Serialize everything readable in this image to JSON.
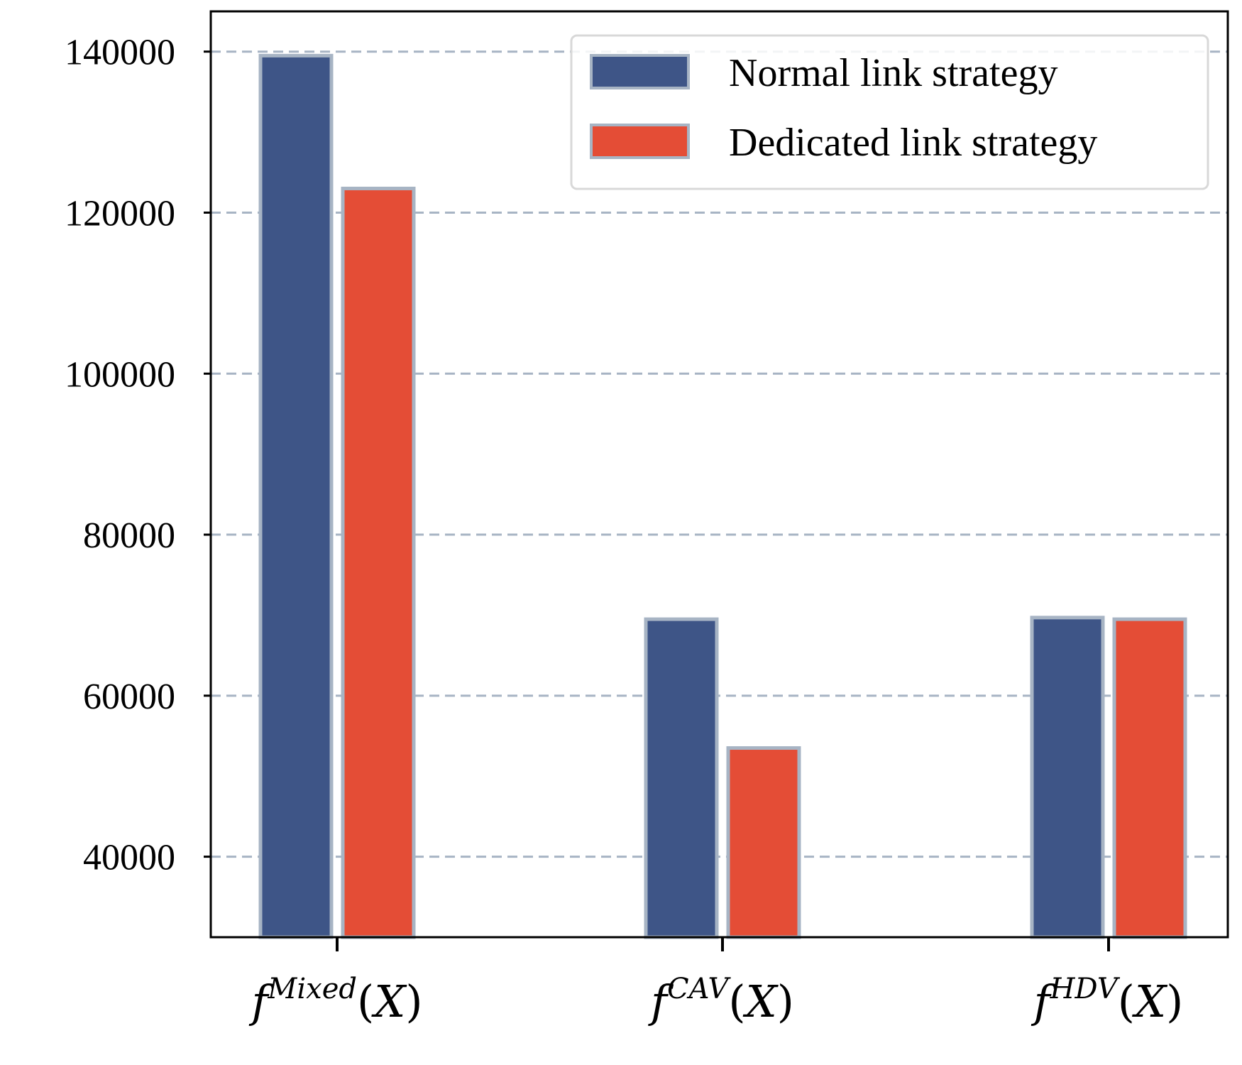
{
  "chart_data": {
    "type": "bar",
    "categories": [
      {
        "base": "f",
        "sup": "Mixed",
        "arg": "X"
      },
      {
        "base": "f",
        "sup": "CAV",
        "arg": "X"
      },
      {
        "base": "f",
        "sup": "HDV",
        "arg": "X"
      }
    ],
    "series": [
      {
        "name": "Normal link strategy",
        "color": "#3e5587",
        "values": [
          139500,
          69500,
          69700
        ]
      },
      {
        "name": "Dedicated link strategy",
        "color": "#e44d36",
        "values": [
          123000,
          53500,
          69500
        ]
      }
    ],
    "bar_edge_color": "#a7b4c4",
    "ylim": [
      30000,
      145000
    ],
    "yticks": [
      40000,
      60000,
      80000,
      100000,
      120000,
      140000
    ],
    "ytick_labels": [
      "40000",
      "60000",
      "80000",
      "100000",
      "120000",
      "140000"
    ],
    "grid": {
      "axis": "y",
      "style": "dashed",
      "color": "#a7b4c4"
    },
    "legend_position": "top-right",
    "xlabel": "",
    "ylabel": "",
    "title": ""
  }
}
